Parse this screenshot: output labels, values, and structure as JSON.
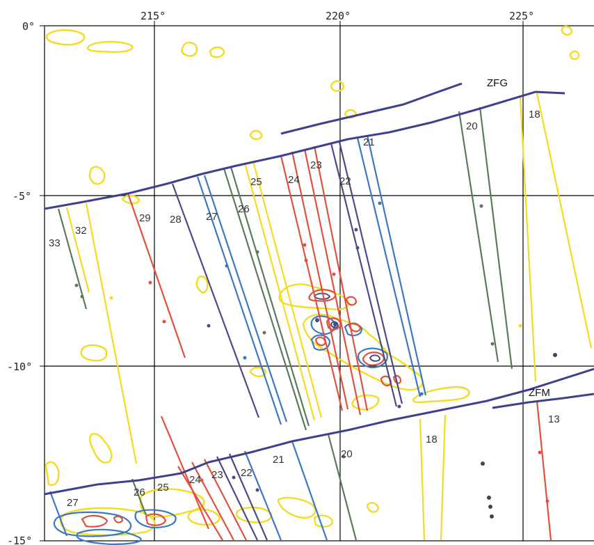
{
  "axes": {
    "lon_labels": [
      "215°",
      "220°",
      "225°"
    ],
    "lat_labels": [
      "0°",
      "-5°",
      "-10°",
      "-15°"
    ]
  },
  "fracture_zones": [
    "ZFG",
    "ZFM"
  ],
  "anomalies_north": {
    "a33": "33",
    "a32": "32",
    "a29": "29",
    "a28": "28",
    "a27": "27",
    "a26": "26",
    "a25": "25",
    "a24": "24",
    "a23": "23",
    "a22": "22",
    "a21": "21",
    "a20": "20",
    "a18": "18"
  },
  "anomalies_south": {
    "a27": "27",
    "a26": "26",
    "a25": "25",
    "a24": "24",
    "a23": "23",
    "a22": "22",
    "a21": "21",
    "a20": "20",
    "a18": "18",
    "a13": "13"
  },
  "colors": {
    "fracture_zone": "#3f3f8f",
    "red": "#e0503c",
    "blue": "#3b78c2",
    "green": "#5b7a5b",
    "yellow": "#f2dc22",
    "navy": "#4a4a86",
    "grid": "#000000"
  }
}
